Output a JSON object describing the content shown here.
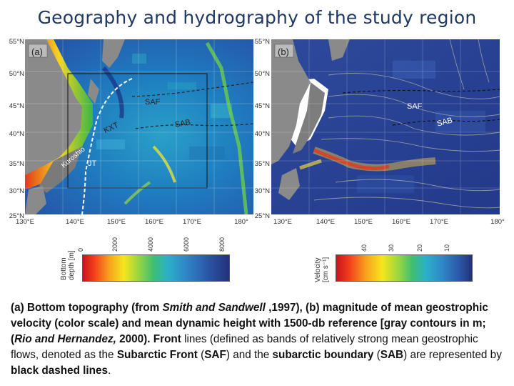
{
  "title": "Geography and hydrography of the study region",
  "panel_a": {
    "tag": "(a)",
    "labels": {
      "saf": "SAF",
      "sab": "SAB",
      "kext": "KXT",
      "kuroshio": "Kuroshio",
      "jt": "JT"
    }
  },
  "panel_b": {
    "tag": "(b)",
    "labels": {
      "saf": "SAF",
      "sab": "SAB"
    }
  },
  "lat_ticks": [
    "55°N",
    "50°N",
    "45°N",
    "40°N",
    "35°N",
    "30°N",
    "25°N"
  ],
  "lon_ticks": [
    "130°E",
    "140°E",
    "150°E",
    "160°E",
    "170°E",
    "180°"
  ],
  "colorbar_depth": {
    "label_line1": "Bottom",
    "label_line2": "depth [m]",
    "ticks": [
      "0",
      "2000",
      "4000",
      "6000",
      "8000"
    ]
  },
  "colorbar_velocity": {
    "label_line1": "Velocity",
    "label_line2": "[cm s⁻¹]",
    "ticks": [
      "40",
      "30",
      "20",
      "10"
    ]
  },
  "caption": {
    "p1": "(a) Bottom topography (from ",
    "p2": "Smith and Sandwell",
    "p3": " ,1997), (b) magnitude of mean geostrophic velocity (color scale) and mean dynamic height with 1500-db reference [gray contours in m; (",
    "p4": "Rio and Hernandez,",
    "p5": " 2000). Front ",
    "p6": " lines (defined as bands of relatively strong mean geostrophic flows, denoted as the ",
    "p7": "Subarctic Front",
    "p8": " (",
    "p9": "SAF",
    "p10": ") and the ",
    "p11": "subarctic boundary",
    "p12": " (",
    "p13": "SAB",
    "p14": ") are represented by ",
    "p15": "black dashed lines",
    "p16": "."
  },
  "colors": {
    "title": "#1f3864",
    "land": "#8a8a8a",
    "ocean_deep": "#2d4ea0",
    "ocean_dark": "#1c2f7a"
  }
}
